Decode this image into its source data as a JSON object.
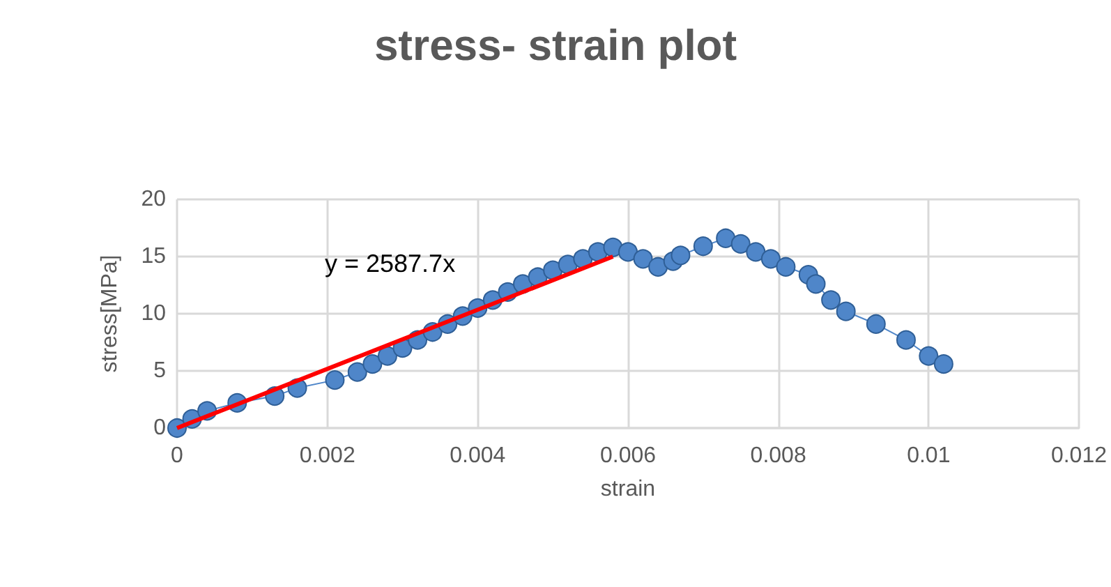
{
  "chart_data": {
    "type": "line",
    "title": "stress- strain plot",
    "xlabel": "strain",
    "ylabel": "stress[MPa]",
    "x": [
      0,
      0.0002,
      0.0004,
      0.0008,
      0.0013,
      0.0016,
      0.0021,
      0.0024,
      0.0026,
      0.0028,
      0.003,
      0.0032,
      0.0034,
      0.0036,
      0.0038,
      0.004,
      0.0042,
      0.0044,
      0.0046,
      0.0048,
      0.005,
      0.0052,
      0.0054,
      0.0056,
      0.0058,
      0.006,
      0.0062,
      0.0064,
      0.0066,
      0.0067,
      0.007,
      0.0073,
      0.0075,
      0.0077,
      0.0079,
      0.0081,
      0.0084,
      0.0085,
      0.0087,
      0.0089,
      0.0093,
      0.0097,
      0.01,
      0.0102
    ],
    "series": [
      {
        "color": "#4f86c9",
        "marker": "circle",
        "values": [
          0,
          0.8,
          1.5,
          2.2,
          2.8,
          3.5,
          4.2,
          4.9,
          5.6,
          6.3,
          7,
          7.7,
          8.4,
          9.1,
          9.8,
          10.5,
          11.2,
          11.9,
          12.6,
          13.2,
          13.8,
          14.3,
          14.8,
          15.4,
          15.8,
          15.4,
          14.8,
          14.1,
          14.6,
          15.1,
          15.9,
          16.6,
          16.1,
          15.4,
          14.8,
          14.1,
          13.4,
          12.6,
          11.2,
          10.2,
          9.1,
          7.7,
          6.3,
          5.6
        ]
      },
      {
        "type": "line",
        "color": "#ff0000",
        "marker": "none",
        "x": [
          0,
          0.0058
        ],
        "values": [
          0,
          15.0
        ]
      }
    ],
    "annotations": [
      "y = 2587.7x"
    ],
    "xlim": [
      0,
      0.012
    ],
    "xticks": [
      0,
      0.002,
      0.004,
      0.006,
      0.008,
      0.01,
      0.012
    ],
    "ylim": [
      0,
      20
    ],
    "yticks": [
      0,
      5,
      10,
      15,
      20
    ],
    "grid": true
  }
}
